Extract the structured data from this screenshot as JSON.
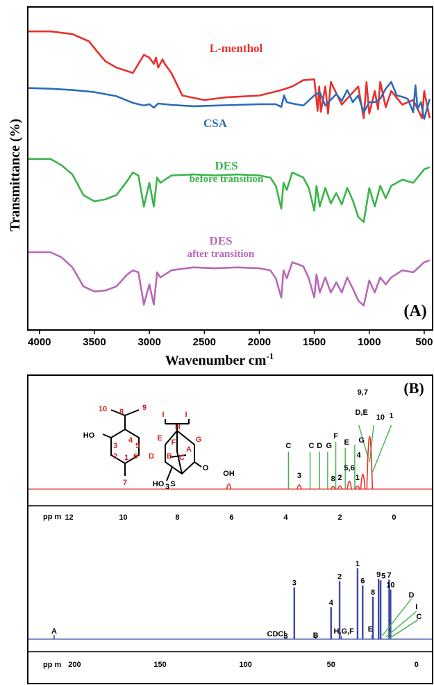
{
  "panelA": {
    "tag": "(A)",
    "ylabel": "Transmittance (%)",
    "xlabel": "Wavenumber cm",
    "xlabel_sup": "-1",
    "chart_data": {
      "type": "line",
      "xlim": [
        4100,
        430
      ],
      "xticks": [
        "4000",
        "3500",
        "3000",
        "2500",
        "2000",
        "1500",
        "1000",
        "500"
      ],
      "series": [
        {
          "name": "L-menthol",
          "color": "#e8302c",
          "label_lines": [
            "L-menthol"
          ],
          "x": [
            4100,
            3900,
            3700,
            3550,
            3450,
            3400,
            3300,
            3150,
            3050,
            3000,
            2960,
            2940,
            2920,
            2880,
            2860,
            2800,
            2700,
            2500,
            2300,
            2000,
            1800,
            1700,
            1600,
            1500,
            1470,
            1455,
            1440,
            1400,
            1375,
            1350,
            1250,
            1100,
            1050,
            1025,
            1000,
            950,
            920,
            900,
            850,
            800,
            700,
            600,
            520,
            500,
            450
          ],
          "y": [
            4,
            4,
            7,
            15,
            30,
            37,
            44,
            50,
            30,
            33,
            40,
            33,
            44,
            35,
            40,
            50,
            75,
            80,
            77,
            75,
            69,
            65,
            58,
            57,
            92,
            65,
            93,
            65,
            95,
            60,
            85,
            65,
            100,
            60,
            95,
            70,
            90,
            60,
            88,
            70,
            85,
            80,
            100,
            70,
            100
          ]
        },
        {
          "name": "CSA",
          "color": "#2b6cb8",
          "label_lines": [
            "CSA"
          ],
          "x": [
            4100,
            3900,
            3700,
            3500,
            3300,
            3150,
            3050,
            3000,
            2960,
            2920,
            2800,
            2600,
            2400,
            2200,
            2000,
            1850,
            1800,
            1775,
            1750,
            1700,
            1600,
            1500,
            1450,
            1400,
            1300,
            1250,
            1200,
            1150,
            1100,
            1050,
            1000,
            950,
            900,
            850,
            800,
            750,
            700,
            650,
            600,
            580,
            560,
            530,
            500,
            450
          ],
          "y": [
            9,
            10,
            12,
            15,
            21,
            31,
            35,
            33,
            38,
            32,
            34,
            36,
            35,
            34,
            33,
            33,
            37,
            20,
            30,
            32,
            35,
            20,
            15,
            35,
            18,
            28,
            12,
            30,
            20,
            45,
            30,
            30,
            25,
            10,
            0,
            20,
            22,
            25,
            45,
            5,
            40,
            30,
            55,
            25
          ]
        },
        {
          "name": "DES before transition",
          "color": "#3ab54a",
          "label_lines": [
            "DES",
            "before transition"
          ],
          "x": [
            4100,
            3900,
            3800,
            3700,
            3600,
            3500,
            3400,
            3300,
            3200,
            3150,
            3100,
            3050,
            3000,
            2960,
            2930,
            2900,
            2800,
            2600,
            2400,
            2200,
            2000,
            1900,
            1850,
            1800,
            1780,
            1750,
            1700,
            1600,
            1550,
            1500,
            1480,
            1450,
            1400,
            1350,
            1300,
            1250,
            1200,
            1150,
            1100,
            1050,
            1000,
            950,
            900,
            850,
            800,
            700,
            600,
            500,
            450
          ],
          "y": [
            22,
            22,
            28,
            37,
            57,
            63,
            61,
            57,
            43,
            35,
            38,
            68,
            45,
            68,
            40,
            45,
            38,
            37,
            38,
            37,
            38,
            40,
            48,
            70,
            45,
            52,
            35,
            40,
            50,
            72,
            48,
            68,
            50,
            65,
            55,
            66,
            50,
            62,
            78,
            83,
            50,
            68,
            48,
            60,
            48,
            42,
            45,
            32,
            30
          ]
        },
        {
          "name": "DES after transition",
          "color": "#b868b8",
          "label_lines": [
            "DES",
            "after transition"
          ],
          "x": [
            4100,
            3900,
            3800,
            3700,
            3600,
            3500,
            3400,
            3300,
            3200,
            3150,
            3100,
            3050,
            3000,
            2960,
            2930,
            2900,
            2800,
            2600,
            2400,
            2200,
            2000,
            1900,
            1850,
            1800,
            1780,
            1750,
            1700,
            1600,
            1550,
            1500,
            1480,
            1450,
            1400,
            1350,
            1300,
            1250,
            1200,
            1150,
            1100,
            1050,
            1000,
            950,
            900,
            850,
            800,
            700,
            600,
            500,
            450
          ],
          "y": [
            40,
            40,
            45,
            55,
            74,
            79,
            78,
            74,
            62,
            58,
            60,
            92,
            72,
            92,
            60,
            65,
            58,
            55,
            56,
            55,
            56,
            58,
            66,
            85,
            58,
            66,
            50,
            54,
            66,
            85,
            62,
            80,
            65,
            80,
            70,
            80,
            65,
            76,
            88,
            93,
            68,
            80,
            65,
            72,
            65,
            58,
            60,
            50,
            48
          ]
        }
      ]
    }
  },
  "panelB": {
    "tag": "(B)",
    "h_spectrum": {
      "axis_label": "pp m",
      "xticks": [
        "12",
        "10",
        "8",
        "6",
        "4",
        "2",
        "0"
      ],
      "xlim": [
        13.5,
        -1.4
      ],
      "peaks": [
        {
          "label": "OH",
          "ppm": 6.1,
          "height": 0.1
        },
        {
          "label": "3",
          "ppm": 3.5,
          "height": 0.08
        },
        {
          "label": "8",
          "ppm": 2.25,
          "height": 0.05
        },
        {
          "label": "2",
          "ppm": 2.0,
          "height": 0.06
        },
        {
          "label": "5,6",
          "ppm": 1.65,
          "height": 0.15
        },
        {
          "label": "1",
          "ppm": 1.35,
          "height": 0.06
        },
        {
          "label": "4",
          "ppm": 1.15,
          "height": 0.28
        },
        {
          "label": "9,7",
          "ppm": 0.9,
          "height": 1.0
        }
      ],
      "green_labels": [
        "C",
        "C",
        "D",
        "G",
        "F",
        "E",
        "D,E",
        "G",
        "10",
        "1"
      ]
    },
    "c_spectrum": {
      "axis_label": "pp m",
      "xticks": [
        "200",
        "150",
        "100",
        "50",
        "0"
      ],
      "xlim": [
        227,
        -9
      ],
      "peaks": [
        {
          "label": "3",
          "ppm": 71.5,
          "height": 0.73
        },
        {
          "label": "4",
          "ppm": 50.0,
          "height": 0.45
        },
        {
          "label": "2",
          "ppm": 45.0,
          "height": 0.82
        },
        {
          "label": "1",
          "ppm": 34.5,
          "height": 1.0
        },
        {
          "label": "6",
          "ppm": 31.5,
          "height": 0.76
        },
        {
          "label": "8",
          "ppm": 25.5,
          "height": 0.6
        },
        {
          "label": "9",
          "ppm": 22.2,
          "height": 0.85
        },
        {
          "label": "5",
          "ppm": 21.0,
          "height": 0.83
        },
        {
          "label": "7",
          "ppm": 16.0,
          "height": 0.84
        },
        {
          "label": "10",
          "ppm": 15.2,
          "height": 0.7
        }
      ],
      "other_labels": [
        "A",
        "CDCl",
        "3",
        "B",
        "H,G,F",
        "E",
        "D",
        "I",
        "C"
      ]
    },
    "structure_labels": {
      "menthol": [
        "10",
        "8",
        "9",
        "HO",
        "3",
        "4",
        "5",
        "2",
        "1",
        "6",
        "7"
      ],
      "csa": [
        "I",
        "I",
        "H",
        "E",
        "F",
        "G",
        "D",
        "B",
        "A",
        "C",
        "O",
        "HO",
        "3",
        "S"
      ]
    }
  }
}
